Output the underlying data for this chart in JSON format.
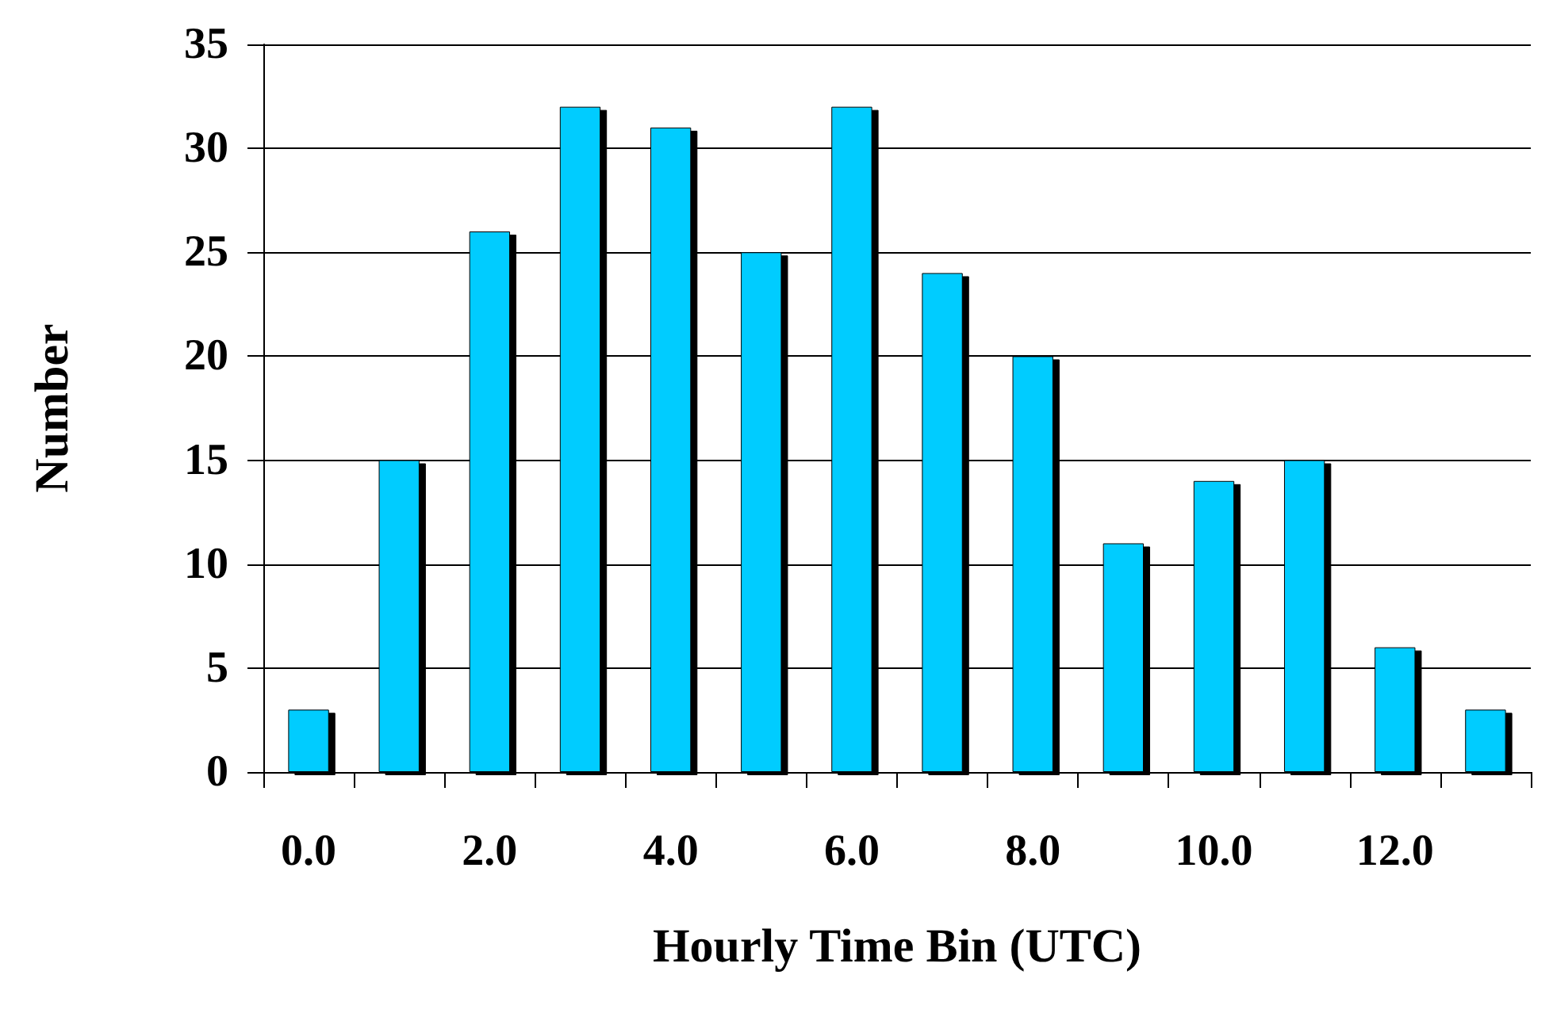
{
  "chart_data": {
    "type": "bar",
    "xlabel": "Hourly Time Bin (UTC)",
    "ylabel": "Number",
    "categories": [
      "0.0",
      null,
      "2.0",
      null,
      "4.0",
      null,
      "6.0",
      null,
      "8.0",
      null,
      "10.0",
      null,
      "12.0",
      null
    ],
    "values": [
      3,
      15,
      26,
      32,
      31,
      25,
      32,
      24,
      20,
      11,
      14,
      15,
      6,
      3
    ],
    "color": "#00ccff",
    "ylim": [
      0,
      35
    ],
    "yticks": [
      0,
      5,
      10,
      15,
      20,
      25,
      30,
      35
    ],
    "grid": "y"
  }
}
